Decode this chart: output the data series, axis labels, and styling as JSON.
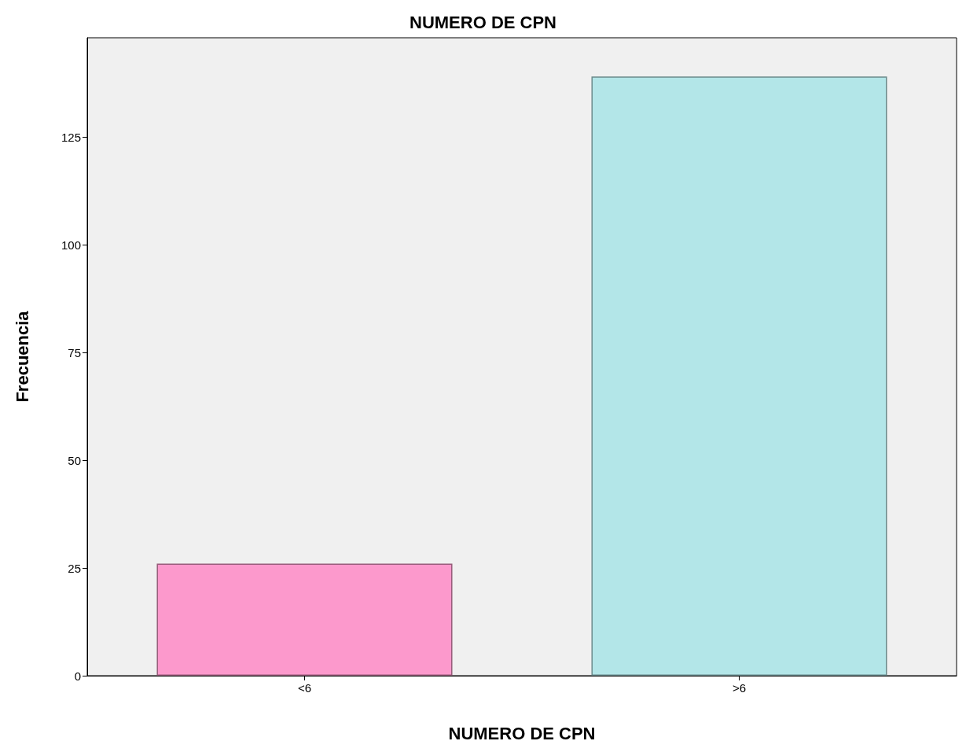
{
  "chart_data": {
    "type": "bar",
    "title": "NUMERO DE CPN",
    "xlabel": "NUMERO DE CPN",
    "ylabel": "Frecuencia",
    "categories": [
      "<6",
      ">6"
    ],
    "values": [
      26,
      139
    ],
    "colors": [
      "#fc99cc",
      "#b3e6e8"
    ],
    "ylim": [
      0,
      148
    ],
    "yticks": [
      0,
      25,
      50,
      75,
      100,
      125
    ],
    "grid": false
  }
}
